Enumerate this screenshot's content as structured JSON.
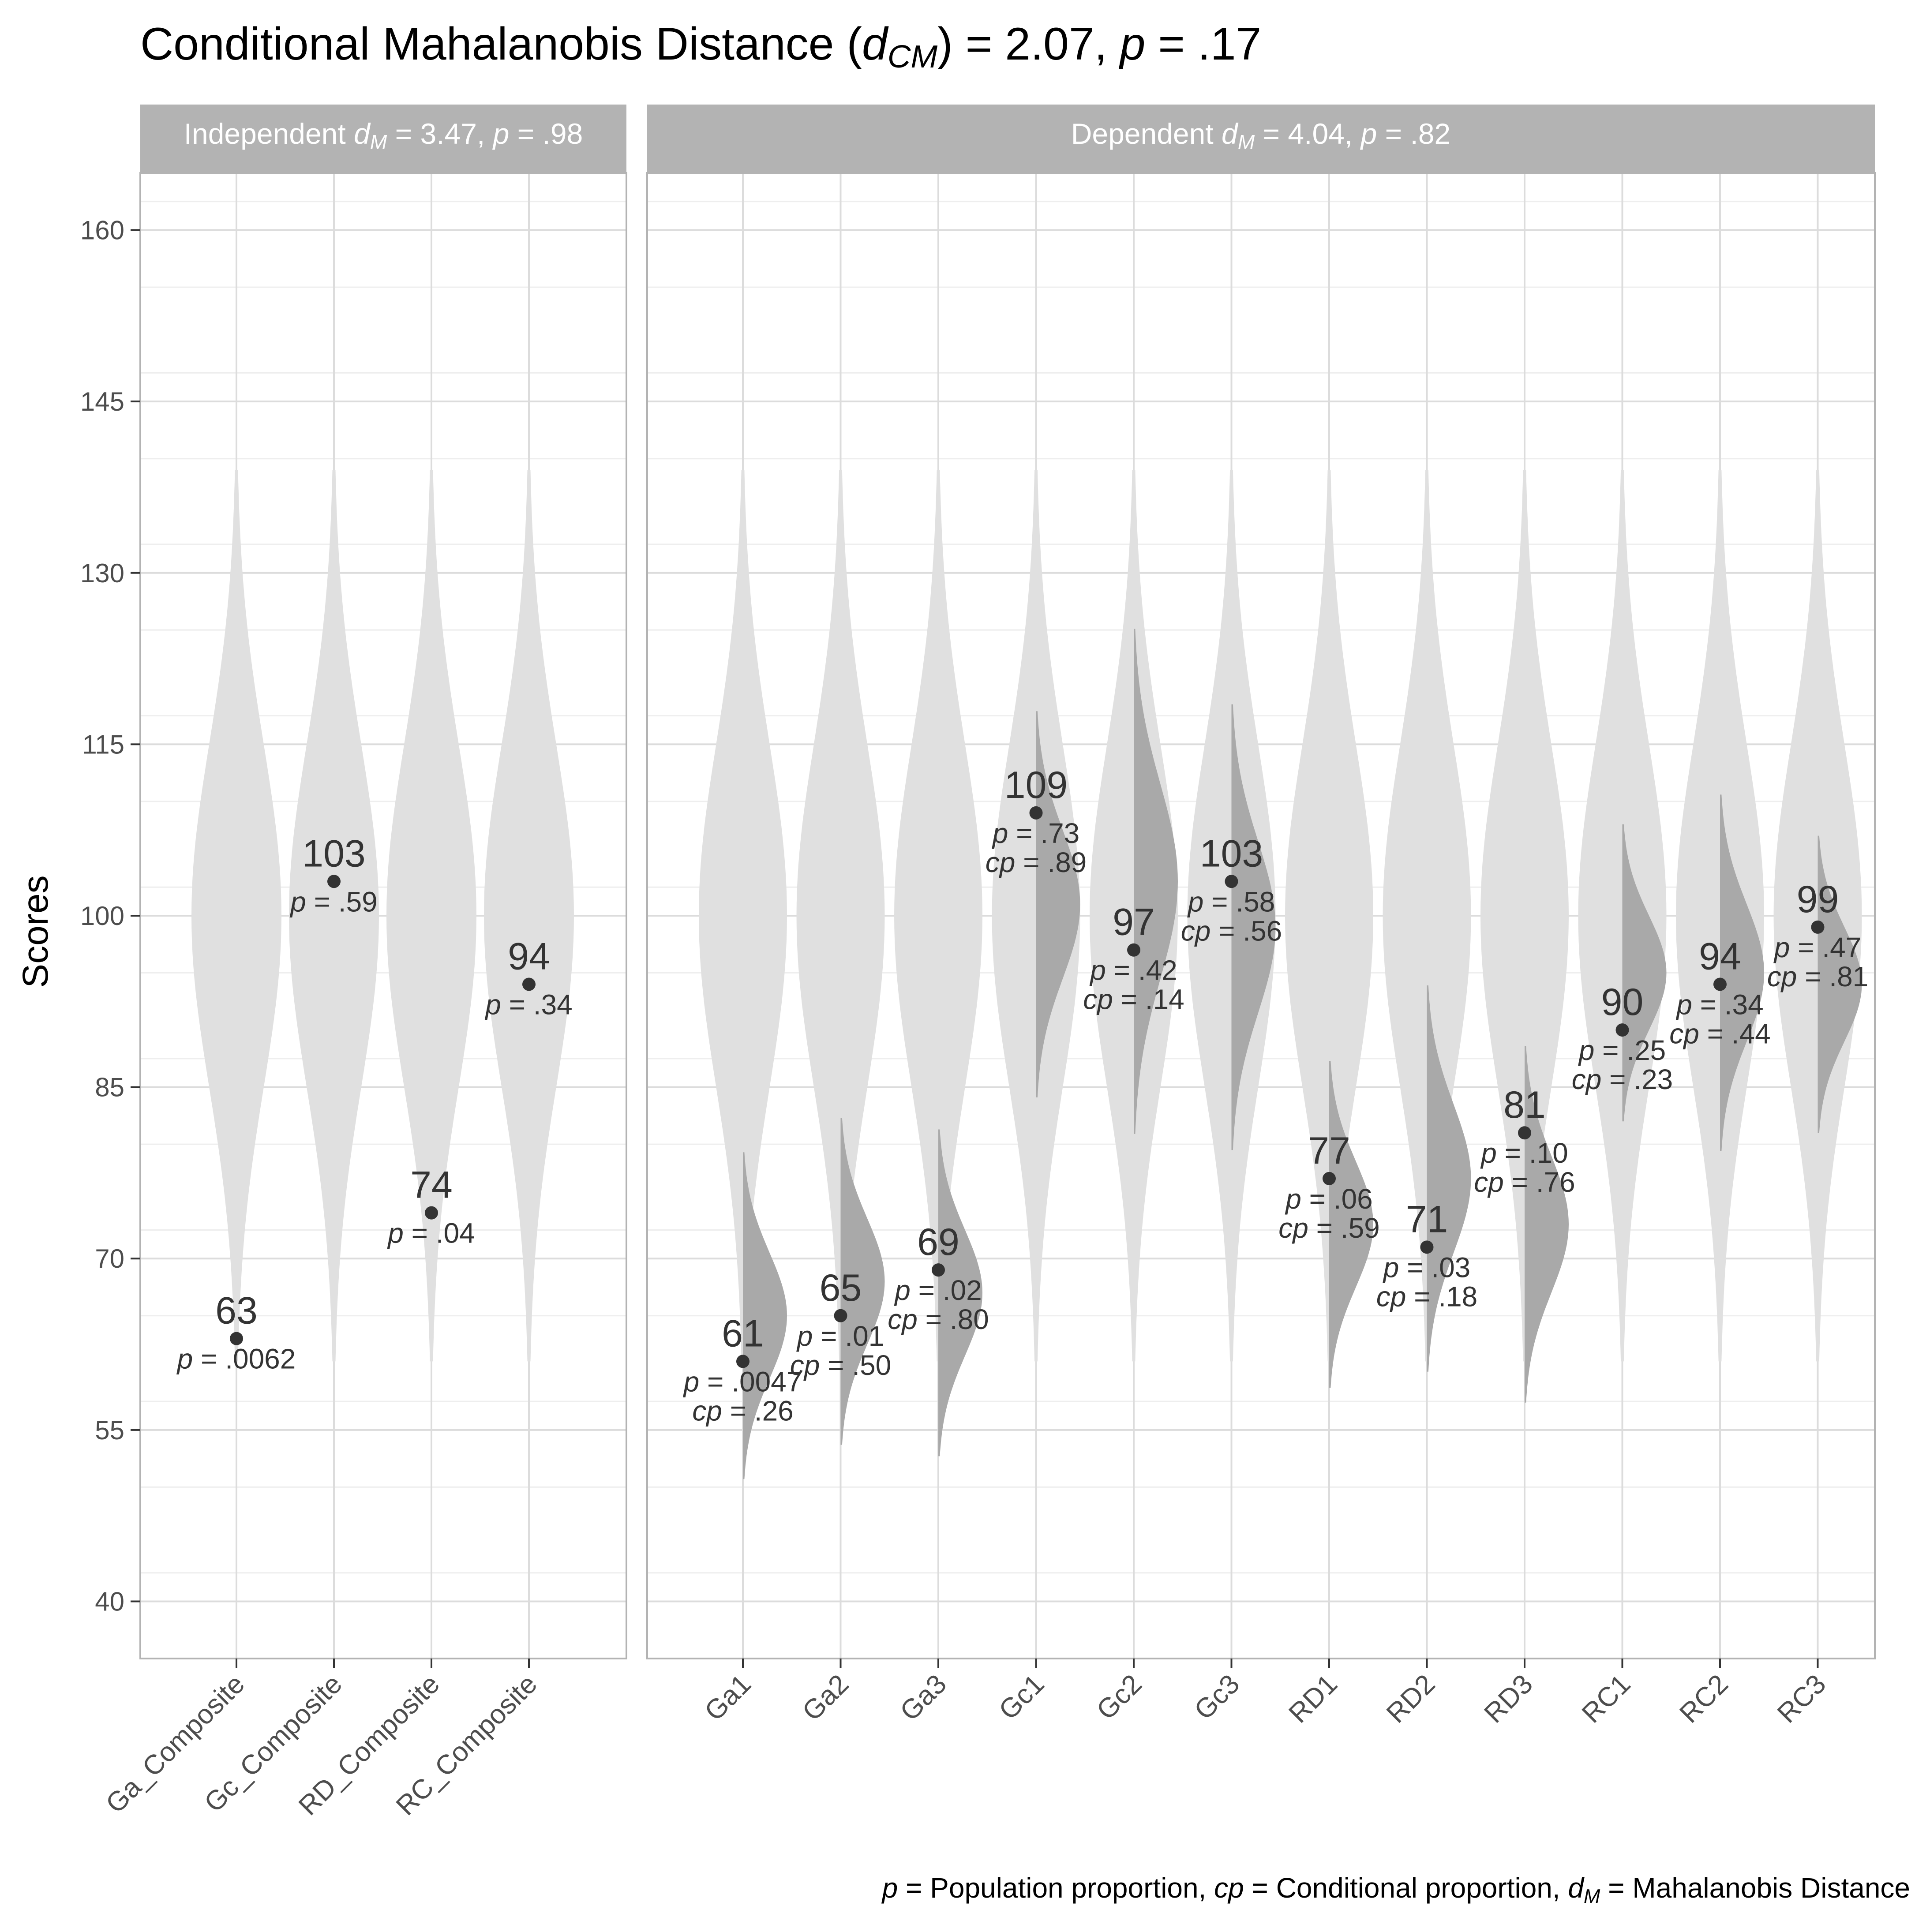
{
  "title": {
    "prefix": "Conditional Mahalanobis Distance (",
    "d": "d",
    "sub": "CM",
    "mid": ") = 2.07, ",
    "p": "p",
    "suffix": " = .17"
  },
  "ylabel": "Scores",
  "caption": {
    "p": "p",
    "t1": " = Population proportion, ",
    "cp": "cp",
    "t2": " = Conditional proportion, ",
    "d": "d",
    "sub": "M",
    "t3": " = Mahalanobis Distance"
  },
  "colors": {
    "strip_bg": "#b3b3b3",
    "violin_light": "#e0e0e0",
    "violin_dark": "#a9a9a9",
    "grid_major": "#dcdcdc",
    "grid_minor": "#eeeeee",
    "point": "#333333"
  },
  "chart_data": {
    "type": "violin",
    "ylabel": "Scores",
    "ylim": [
      35,
      165
    ],
    "yticks": [
      "40",
      "55",
      "70",
      "85",
      "100",
      "115",
      "130",
      "145",
      "160"
    ],
    "grid": true,
    "population_mean": 100,
    "population_sd": 15,
    "panels": [
      {
        "name": "independent",
        "strip": {
          "prefix": "Independent ",
          "d": "d",
          "sub": "M",
          "mid": " = 3.47, ",
          "p": "p",
          "suffix": " = .98"
        },
        "categories": [
          "Ga_Composite",
          "Gc_Composite",
          "RD_Composite",
          "RC_Composite"
        ],
        "scores": [
          63,
          103,
          74,
          94
        ],
        "score_labels": [
          "63",
          "103",
          "74",
          "94"
        ],
        "p_labels": [
          ".0062",
          ".59",
          ".04",
          ".34"
        ]
      },
      {
        "name": "dependent",
        "strip": {
          "prefix": "Dependent ",
          "d": "d",
          "sub": "M",
          "mid": " = 4.04, ",
          "p": "p",
          "suffix": " = .82"
        },
        "categories": [
          "Ga1",
          "Ga2",
          "Ga3",
          "Gc1",
          "Gc2",
          "Gc3",
          "RD1",
          "RD2",
          "RD3",
          "RC1",
          "RC2",
          "RC3"
        ],
        "scores": [
          61,
          65,
          69,
          109,
          97,
          103,
          77,
          71,
          81,
          90,
          94,
          99
        ],
        "score_labels": [
          "61",
          "65",
          "69",
          "109",
          "97",
          "103",
          "77",
          "71",
          "81",
          "90",
          "94",
          "99"
        ],
        "p_labels": [
          ".0047",
          ".01",
          ".02",
          ".73",
          ".42",
          ".58",
          ".06",
          ".03",
          ".10",
          ".25",
          ".34",
          ".47"
        ],
        "cp_labels": [
          ".26",
          ".50",
          ".80",
          ".89",
          ".14",
          ".56",
          ".59",
          ".18",
          ".76",
          ".23",
          ".44",
          ".81"
        ],
        "conditional_mean": [
          65,
          68,
          67,
          101,
          103,
          99,
          73,
          77,
          73,
          95,
          95,
          94
        ],
        "conditional_sd": [
          5.5,
          5.5,
          5.5,
          6.5,
          8.5,
          7.5,
          5.5,
          6.5,
          6.0,
          5.0,
          6.0,
          5.0
        ]
      }
    ]
  }
}
